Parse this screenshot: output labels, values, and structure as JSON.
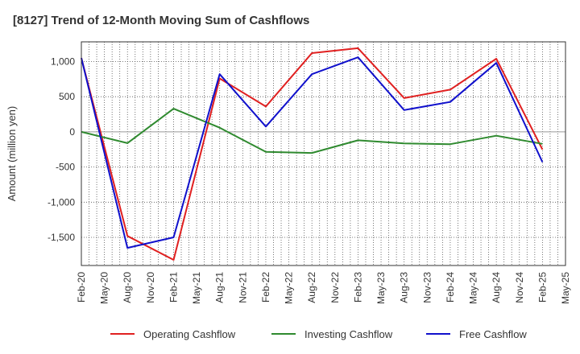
{
  "chart_data": {
    "type": "line",
    "title": "[8127]  Trend of 12-Month Moving Sum of Cashflows",
    "xlabel": "",
    "ylabel": "Amount (million yen)",
    "ylim": [
      -1900,
      1280
    ],
    "yticks": [
      1000,
      500,
      0,
      -500,
      -1000,
      -1500
    ],
    "ytick_labels": [
      "1,000",
      "500",
      "0",
      "-500",
      "-1,000",
      "-1,500"
    ],
    "x_ticks": [
      "Feb-20",
      "May-20",
      "Aug-20",
      "Nov-20",
      "Feb-21",
      "May-21",
      "Aug-21",
      "Nov-21",
      "Feb-22",
      "May-22",
      "Aug-22",
      "Nov-22",
      "Feb-23",
      "May-23",
      "Aug-23",
      "Nov-23",
      "Feb-24",
      "May-24",
      "Aug-24",
      "Nov-24",
      "Feb-25",
      "May-25"
    ],
    "grid": true,
    "legend_position": "bottom",
    "series": [
      {
        "name": "Operating Cashflow",
        "color": "#e02020",
        "points": [
          {
            "x": "Feb-20",
            "y": 1050
          },
          {
            "x": "Aug-20",
            "y": -1480
          },
          {
            "x": "Feb-21",
            "y": -1820
          },
          {
            "x": "Aug-21",
            "y": 760
          },
          {
            "x": "Feb-22",
            "y": 360
          },
          {
            "x": "Aug-22",
            "y": 1120
          },
          {
            "x": "Feb-23",
            "y": 1190
          },
          {
            "x": "Aug-23",
            "y": 480
          },
          {
            "x": "Feb-24",
            "y": 600
          },
          {
            "x": "Aug-24",
            "y": 1040
          },
          {
            "x": "Feb-25",
            "y": -250
          }
        ]
      },
      {
        "name": "Investing Cashflow",
        "color": "#2f8a2f",
        "points": [
          {
            "x": "Feb-20",
            "y": 0
          },
          {
            "x": "Aug-20",
            "y": -160
          },
          {
            "x": "Feb-21",
            "y": 330
          },
          {
            "x": "Aug-21",
            "y": 60
          },
          {
            "x": "Feb-22",
            "y": -285
          },
          {
            "x": "Aug-22",
            "y": -300
          },
          {
            "x": "Feb-23",
            "y": -120
          },
          {
            "x": "Aug-23",
            "y": -165
          },
          {
            "x": "Feb-24",
            "y": -175
          },
          {
            "x": "Aug-24",
            "y": -55
          },
          {
            "x": "Feb-25",
            "y": -170
          }
        ]
      },
      {
        "name": "Free Cashflow",
        "color": "#1010cc",
        "points": [
          {
            "x": "Feb-20",
            "y": 1050
          },
          {
            "x": "Aug-20",
            "y": -1650
          },
          {
            "x": "Feb-21",
            "y": -1500
          },
          {
            "x": "Aug-21",
            "y": 820
          },
          {
            "x": "Feb-22",
            "y": 75
          },
          {
            "x": "Aug-22",
            "y": 820
          },
          {
            "x": "Feb-23",
            "y": 1060
          },
          {
            "x": "Aug-23",
            "y": 310
          },
          {
            "x": "Feb-24",
            "y": 425
          },
          {
            "x": "Aug-24",
            "y": 980
          },
          {
            "x": "Feb-25",
            "y": -430
          }
        ]
      }
    ]
  }
}
